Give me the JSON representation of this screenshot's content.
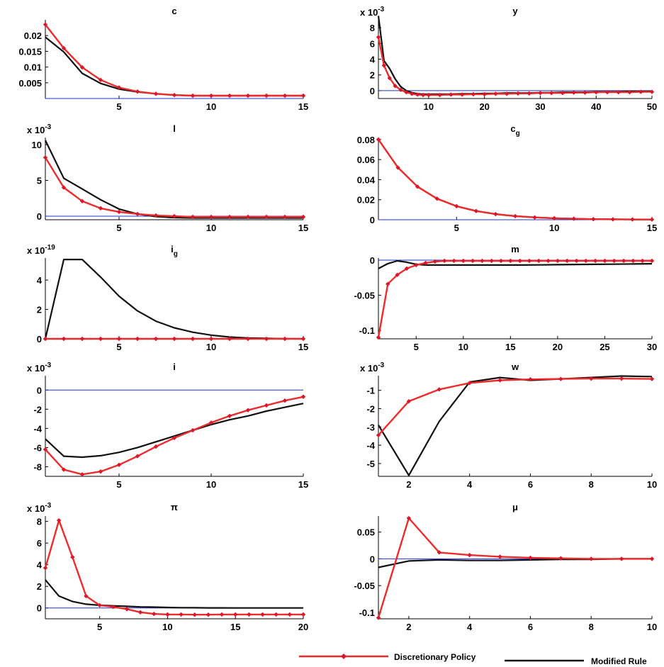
{
  "legend": {
    "discretionary_label": "Discretionary Policy",
    "modified_label": "Modified Rule"
  },
  "colors": {
    "discretionary": "#ee2b2b",
    "modified": "#111111",
    "zero_line": "#2233cc",
    "marker": "#d9182b"
  },
  "chart_data": [
    {
      "type": "line",
      "title": "c",
      "exponent": "",
      "xlim": [
        1,
        15
      ],
      "ylim": [
        0,
        0.025
      ],
      "xticks": [
        5,
        10,
        15
      ],
      "xtick_labels": [
        "5",
        "10",
        "15"
      ],
      "yticks": [
        0.005,
        0.01,
        0.015,
        0.02
      ],
      "ytick_labels": [
        "0.005",
        "0.01",
        "0.015",
        "0.02"
      ],
      "series": [
        {
          "name": "Discretionary Policy",
          "x": [
            1,
            2,
            3,
            4,
            5,
            6,
            7,
            8,
            9,
            10,
            11,
            12,
            13,
            14,
            15
          ],
          "y": [
            0.0235,
            0.016,
            0.0099,
            0.0059,
            0.0035,
            0.0022,
            0.0015,
            0.0011,
            0.0009,
            0.0009,
            0.0009,
            0.0009,
            0.0009,
            0.0009,
            0.0009
          ]
        },
        {
          "name": "Modified Rule",
          "x": [
            1,
            2,
            3,
            4,
            5,
            6,
            7,
            8,
            9,
            10,
            11,
            12,
            13,
            14,
            15
          ],
          "y": [
            0.0195,
            0.0148,
            0.008,
            0.0048,
            0.003,
            0.0021,
            0.0015,
            0.0011,
            0.0009,
            0.0009,
            0.0009,
            0.0009,
            0.0009,
            0.0009,
            0.0009
          ]
        }
      ]
    },
    {
      "type": "line",
      "title": "y",
      "exponent": "x 10-3",
      "xlim": [
        1,
        50
      ],
      "ylim": [
        -1,
        9
      ],
      "xticks": [
        10,
        20,
        30,
        40,
        50
      ],
      "xtick_labels": [
        "10",
        "20",
        "30",
        "40",
        "50"
      ],
      "yticks": [
        0,
        2,
        4,
        6,
        8
      ],
      "ytick_labels": [
        "0",
        "2",
        "4",
        "6",
        "8"
      ],
      "series": [
        {
          "name": "Discretionary Policy",
          "x": [
            1,
            2,
            3,
            4,
            5,
            6,
            7,
            8,
            9,
            10,
            12,
            14,
            16,
            18,
            20,
            22,
            24,
            26,
            28,
            30,
            32,
            34,
            36,
            38,
            40,
            42,
            44,
            46,
            48,
            50
          ],
          "y": [
            6.8,
            3.2,
            1.6,
            0.6,
            0.1,
            -0.2,
            -0.4,
            -0.5,
            -0.55,
            -0.55,
            -0.55,
            -0.5,
            -0.5,
            -0.45,
            -0.45,
            -0.4,
            -0.4,
            -0.35,
            -0.35,
            -0.3,
            -0.3,
            -0.3,
            -0.25,
            -0.25,
            -0.2,
            -0.2,
            -0.2,
            -0.2,
            -0.15,
            -0.15
          ]
        },
        {
          "name": "Modified Rule",
          "x": [
            1,
            2,
            3,
            4,
            5,
            6,
            7,
            8,
            9,
            10,
            12,
            14,
            16,
            18,
            20,
            22,
            24,
            26,
            28,
            30,
            32,
            34,
            36,
            38,
            40,
            42,
            44,
            46,
            48,
            50
          ],
          "y": [
            9.5,
            3.8,
            2.8,
            1.5,
            0.5,
            0.0,
            -0.25,
            -0.4,
            -0.45,
            -0.45,
            -0.45,
            -0.45,
            -0.4,
            -0.4,
            -0.35,
            -0.35,
            -0.3,
            -0.3,
            -0.3,
            -0.25,
            -0.25,
            -0.2,
            -0.2,
            -0.2,
            -0.15,
            -0.15,
            -0.15,
            -0.1,
            -0.1,
            -0.1
          ]
        }
      ]
    },
    {
      "type": "line",
      "title": "l",
      "exponent": "x 10-3",
      "xlim": [
        1,
        15
      ],
      "ylim": [
        -0.5,
        11
      ],
      "xticks": [
        5,
        10,
        15
      ],
      "xtick_labels": [
        "5",
        "10",
        "15"
      ],
      "yticks": [
        0,
        5,
        10
      ],
      "ytick_labels": [
        "0",
        "5",
        "10"
      ],
      "series": [
        {
          "name": "Discretionary Policy",
          "x": [
            1,
            2,
            3,
            4,
            5,
            6,
            7,
            8,
            9,
            10,
            11,
            12,
            13,
            14,
            15
          ],
          "y": [
            8.2,
            4.0,
            2.1,
            1.1,
            0.6,
            0.3,
            0.1,
            0.0,
            -0.1,
            -0.1,
            -0.1,
            -0.1,
            -0.1,
            -0.1,
            -0.1
          ]
        },
        {
          "name": "Modified Rule",
          "x": [
            1,
            2,
            3,
            4,
            5,
            6,
            7,
            8,
            9,
            10,
            11,
            12,
            13,
            14,
            15
          ],
          "y": [
            10.6,
            5.3,
            3.8,
            2.3,
            1.0,
            0.3,
            -0.05,
            -0.2,
            -0.25,
            -0.25,
            -0.25,
            -0.25,
            -0.25,
            -0.25,
            -0.25
          ]
        }
      ]
    },
    {
      "type": "line",
      "title": "cg",
      "exponent": "",
      "xlim": [
        1,
        15
      ],
      "ylim": [
        0,
        0.082
      ],
      "xticks": [
        5,
        10,
        15
      ],
      "xtick_labels": [
        "5",
        "10",
        "15"
      ],
      "yticks": [
        0,
        0.02,
        0.04,
        0.06,
        0.08
      ],
      "ytick_labels": [
        "0",
        "0.02",
        "0.04",
        "0.06",
        "0.08"
      ],
      "series": [
        {
          "name": "Discretionary Policy",
          "x": [
            1,
            2,
            3,
            4,
            5,
            6,
            7,
            8,
            9,
            10,
            11,
            12,
            13,
            14,
            15
          ],
          "y": [
            0.08,
            0.052,
            0.033,
            0.021,
            0.0135,
            0.0087,
            0.0056,
            0.0036,
            0.0023,
            0.0015,
            0.001,
            0.0006,
            0.0004,
            0.0003,
            0.0002
          ]
        },
        {
          "name": "Modified Rule",
          "x": [
            1,
            2,
            3,
            4,
            5,
            6,
            7,
            8,
            9,
            10,
            11,
            12,
            13,
            14,
            15
          ],
          "y": [
            0.08,
            0.052,
            0.033,
            0.021,
            0.0135,
            0.0087,
            0.0056,
            0.0036,
            0.0023,
            0.0015,
            0.001,
            0.0006,
            0.0004,
            0.0003,
            0.0002
          ]
        }
      ]
    },
    {
      "type": "line",
      "title": "ig",
      "exponent": "x 10-19",
      "xlim": [
        1,
        15
      ],
      "ylim": [
        0,
        5.5
      ],
      "xticks": [
        5,
        10,
        15
      ],
      "xtick_labels": [
        "5",
        "10",
        "15"
      ],
      "yticks": [
        0,
        2,
        4
      ],
      "ytick_labels": [
        "0",
        "2",
        "4"
      ],
      "series": [
        {
          "name": "Discretionary Policy",
          "x": [
            1,
            2,
            3,
            4,
            5,
            6,
            7,
            8,
            9,
            10,
            11,
            12,
            13,
            14,
            15
          ],
          "y": [
            0,
            0,
            0,
            0,
            0,
            0,
            0,
            0,
            0,
            0,
            0,
            0,
            0,
            0,
            0
          ]
        },
        {
          "name": "Modified Rule",
          "x": [
            1,
            2,
            3,
            4,
            5,
            6,
            7,
            8,
            9,
            10,
            11,
            12,
            13,
            14,
            15
          ],
          "y": [
            0,
            5.4,
            5.4,
            4.2,
            2.9,
            1.9,
            1.2,
            0.75,
            0.45,
            0.25,
            0.12,
            0.06,
            0.03,
            0.01,
            0
          ]
        }
      ]
    },
    {
      "type": "line",
      "title": "m",
      "exponent": "",
      "xlim": [
        1,
        30
      ],
      "ylim": [
        -0.112,
        0.003
      ],
      "xticks": [
        5,
        10,
        15,
        20,
        25,
        30
      ],
      "xtick_labels": [
        "5",
        "10",
        "15",
        "20",
        "25",
        "30"
      ],
      "yticks": [
        -0.1,
        -0.05,
        0
      ],
      "ytick_labels": [
        "-0.1",
        "-0.05",
        "0"
      ],
      "series": [
        {
          "name": "Discretionary Policy",
          "x": [
            1,
            2,
            3,
            4,
            5,
            6,
            7,
            8,
            9,
            10,
            11,
            12,
            13,
            14,
            15,
            16,
            17,
            18,
            19,
            20,
            21,
            22,
            23,
            24,
            25,
            26,
            27,
            28,
            29,
            30
          ],
          "y": [
            -0.11,
            -0.034,
            -0.021,
            -0.012,
            -0.007,
            -0.004,
            -0.002,
            -0.001,
            -0.001,
            -0.001,
            -0.001,
            -0.001,
            -0.001,
            -0.001,
            -0.001,
            -0.001,
            -0.001,
            -0.001,
            -0.001,
            -0.001,
            -0.001,
            -0.001,
            -0.001,
            -0.001,
            -0.001,
            -0.001,
            -0.001,
            -0.001,
            -0.001,
            -0.001
          ]
        },
        {
          "name": "Modified Rule",
          "x": [
            1,
            2,
            3,
            4,
            5,
            6,
            8,
            10,
            12,
            14,
            16,
            18,
            20,
            22,
            24,
            26,
            28,
            30
          ],
          "y": [
            -0.012,
            -0.005,
            -0.001,
            -0.003,
            -0.006,
            -0.007,
            -0.007,
            -0.007,
            -0.007,
            -0.007,
            -0.007,
            -0.0068,
            -0.0065,
            -0.0062,
            -0.006,
            -0.0058,
            -0.0055,
            -0.0052
          ]
        }
      ]
    },
    {
      "type": "line",
      "title": "i",
      "exponent": "x 10-3",
      "xlim": [
        1,
        15
      ],
      "ylim": [
        -9,
        1.5
      ],
      "xticks": [
        5,
        10,
        15
      ],
      "xtick_labels": [
        "5",
        "10",
        "15"
      ],
      "yticks": [
        -8,
        -6,
        -4,
        -2,
        0
      ],
      "ytick_labels": [
        "-8",
        "-6",
        "-4",
        "-2",
        "0"
      ],
      "series": [
        {
          "name": "Discretionary Policy",
          "x": [
            1,
            2,
            3,
            4,
            5,
            6,
            7,
            8,
            9,
            10,
            11,
            12,
            13,
            14,
            15
          ],
          "y": [
            -6.2,
            -8.3,
            -8.8,
            -8.5,
            -7.8,
            -6.9,
            -5.9,
            -5.0,
            -4.2,
            -3.4,
            -2.7,
            -2.1,
            -1.6,
            -1.1,
            -0.7
          ]
        },
        {
          "name": "Modified Rule",
          "x": [
            1,
            2,
            3,
            4,
            5,
            6,
            7,
            8,
            9,
            10,
            11,
            12,
            13,
            14,
            15
          ],
          "y": [
            -5.1,
            -6.9,
            -7.0,
            -6.85,
            -6.5,
            -6.0,
            -5.4,
            -4.8,
            -4.2,
            -3.6,
            -3.1,
            -2.7,
            -2.2,
            -1.8,
            -1.4
          ]
        }
      ]
    },
    {
      "type": "line",
      "title": "w",
      "exponent": "x 10-3",
      "xlim": [
        1,
        10
      ],
      "ylim": [
        -5.7,
        -0.2
      ],
      "xticks": [
        2,
        4,
        6,
        8,
        10
      ],
      "xtick_labels": [
        "2",
        "4",
        "6",
        "8",
        "10"
      ],
      "yticks": [
        -5,
        -4,
        -3,
        -2,
        -1
      ],
      "ytick_labels": [
        "-5",
        "-4",
        "-3",
        "-2",
        "-1"
      ],
      "series": [
        {
          "name": "Discretionary Policy",
          "x": [
            1,
            2,
            3,
            4,
            5,
            6,
            7,
            8,
            9,
            10
          ],
          "y": [
            -3.45,
            -1.6,
            -0.95,
            -0.6,
            -0.45,
            -0.4,
            -0.38,
            -0.36,
            -0.36,
            -0.38
          ]
        },
        {
          "name": "Modified Rule",
          "x": [
            1,
            2,
            3,
            4,
            5,
            6,
            7,
            8,
            9,
            10
          ],
          "y": [
            -2.9,
            -5.65,
            -2.7,
            -0.55,
            -0.3,
            -0.45,
            -0.38,
            -0.3,
            -0.22,
            -0.25
          ]
        }
      ]
    },
    {
      "type": "line",
      "title": "π",
      "exponent": "x 10-3",
      "xlim": [
        1,
        20
      ],
      "ylim": [
        -1,
        8.5
      ],
      "xticks": [
        5,
        10,
        15,
        20
      ],
      "xtick_labels": [
        "5",
        "10",
        "15",
        "20"
      ],
      "yticks": [
        0,
        2,
        4,
        6,
        8
      ],
      "ytick_labels": [
        "0",
        "2",
        "4",
        "6",
        "8"
      ],
      "series": [
        {
          "name": "Discretionary Policy",
          "x": [
            1,
            2,
            3,
            4,
            5,
            6,
            7,
            8,
            9,
            10,
            11,
            12,
            13,
            14,
            15,
            16,
            17,
            18,
            19,
            20
          ],
          "y": [
            3.7,
            8.1,
            4.7,
            1.1,
            0.25,
            0.1,
            -0.1,
            -0.4,
            -0.55,
            -0.6,
            -0.6,
            -0.62,
            -0.62,
            -0.6,
            -0.6,
            -0.6,
            -0.6,
            -0.6,
            -0.6,
            -0.6
          ]
        },
        {
          "name": "Modified Rule",
          "x": [
            1,
            2,
            3,
            4,
            5,
            6,
            7,
            8,
            9,
            10,
            11,
            12,
            13,
            14,
            15,
            16,
            17,
            18,
            19,
            20
          ],
          "y": [
            2.6,
            1.1,
            0.6,
            0.35,
            0.25,
            0.2,
            0.15,
            0.1,
            0.08,
            0.05,
            0.03,
            0.02,
            0.01,
            0.01,
            0.0,
            0.0,
            0.0,
            0.0,
            0.0,
            0.0
          ]
        }
      ]
    },
    {
      "type": "line",
      "title": "μ",
      "exponent": "",
      "xlim": [
        1,
        10
      ],
      "ylim": [
        -0.112,
        0.08
      ],
      "xticks": [
        2,
        4,
        6,
        8,
        10
      ],
      "xtick_labels": [
        "2",
        "4",
        "6",
        "8",
        "10"
      ],
      "yticks": [
        -0.1,
        -0.05,
        0,
        0.05
      ],
      "ytick_labels": [
        "-0.1",
        "-0.05",
        "0",
        "0.05"
      ],
      "series": [
        {
          "name": "Discretionary Policy",
          "x": [
            1,
            2,
            3,
            4,
            5,
            6,
            7,
            8,
            9,
            10
          ],
          "y": [
            -0.11,
            0.076,
            0.012,
            0.007,
            0.004,
            0.002,
            0.001,
            0.0,
            0.0,
            0.0
          ]
        },
        {
          "name": "Modified Rule",
          "x": [
            1,
            2,
            3,
            4,
            5,
            6,
            7,
            8,
            9,
            10
          ],
          "y": [
            -0.016,
            -0.004,
            -0.002,
            -0.003,
            -0.003,
            -0.002,
            -0.001,
            -0.001,
            0.0,
            0.0
          ]
        }
      ]
    }
  ]
}
